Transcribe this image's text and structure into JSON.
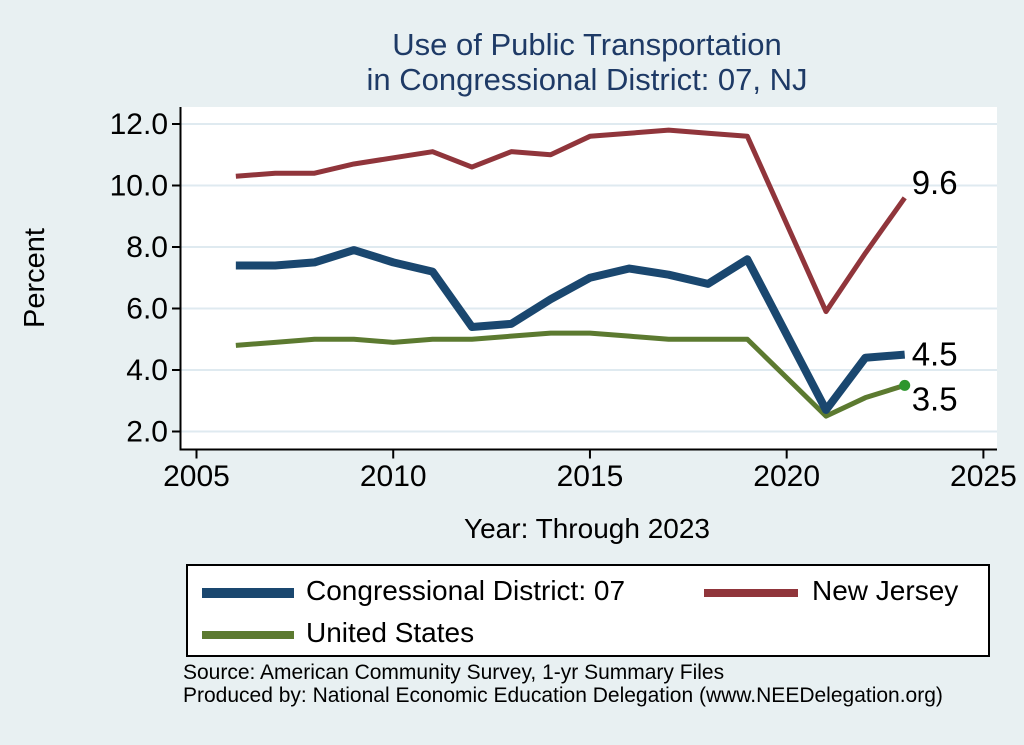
{
  "title": {
    "line1": "Use of Public Transportation",
    "line2": "in Congressional District: 07, NJ"
  },
  "colors": {
    "background": "#e8f0f2",
    "plot_background": "#ffffff",
    "gridline": "#dfeaf0",
    "axis": "#000000",
    "title_text": "#1e3a66",
    "navy": "#1a476f",
    "maroon": "#90353b",
    "olive": "#5c7a30",
    "end_marker_green": "#2d962d"
  },
  "chart_data": {
    "type": "line",
    "title": "Use of Public Transportation in Congressional District: 07, NJ",
    "xlabel": "Year: Through 2023",
    "ylabel": "Percent",
    "xlim": [
      2005,
      2025
    ],
    "ylim": [
      2.0,
      12.0
    ],
    "grid": true,
    "legend_position": "bottom",
    "x_ticks": [
      "2005",
      "2010",
      "2015",
      "2020",
      "2025"
    ],
    "x_tick_values": [
      2005,
      2010,
      2015,
      2020,
      2025
    ],
    "y_ticks": [
      "2.0",
      "4.0",
      "6.0",
      "8.0",
      "10.0",
      "12.0"
    ],
    "y_tick_values": [
      2,
      4,
      6,
      8,
      10,
      12
    ],
    "years": [
      2006,
      2007,
      2008,
      2009,
      2010,
      2011,
      2012,
      2013,
      2014,
      2015,
      2016,
      2017,
      2018,
      2019,
      2021,
      2022,
      2023
    ],
    "series": [
      {
        "name": "Congressional District: 07",
        "color_key": "navy",
        "width": 8,
        "z": 3,
        "values": [
          7.4,
          7.4,
          7.5,
          7.9,
          7.5,
          7.2,
          5.4,
          5.5,
          6.3,
          7.0,
          7.3,
          7.1,
          6.8,
          7.6,
          2.7,
          4.4,
          4.5
        ],
        "end_label": {
          "text": "4.5",
          "dx": 7,
          "dy": 11
        }
      },
      {
        "name": "New Jersey",
        "color_key": "maroon",
        "width": 5,
        "z": 2,
        "values": [
          10.3,
          10.4,
          10.4,
          10.7,
          10.9,
          11.1,
          10.6,
          11.1,
          11.0,
          11.6,
          11.7,
          11.8,
          11.7,
          11.6,
          5.9,
          7.8,
          9.6
        ],
        "end_label": {
          "text": "9.6",
          "dx": 7,
          "dy": -4
        }
      },
      {
        "name": "United States",
        "color_key": "olive",
        "width": 5,
        "z": 1,
        "values": [
          4.8,
          4.9,
          5.0,
          5.0,
          4.9,
          5.0,
          5.0,
          5.1,
          5.2,
          5.2,
          5.1,
          5.0,
          5.0,
          5.0,
          2.5,
          3.1,
          3.5
        ],
        "end_marker": true,
        "end_marker_color_key": "end_marker_green",
        "end_label": {
          "text": "3.5",
          "dx": 7,
          "dy": 25
        }
      }
    ]
  },
  "legend": {
    "items": [
      {
        "label": "Congressional District: 07",
        "color_key": "navy"
      },
      {
        "label": "New Jersey",
        "color_key": "maroon"
      },
      {
        "label": "United States",
        "color_key": "olive"
      }
    ]
  },
  "footer": {
    "line1": "Source: American Community Survey, 1-yr Summary Files",
    "line2": "Produced by: National Economic Education Delegation (www.NEEDelegation.org)"
  }
}
